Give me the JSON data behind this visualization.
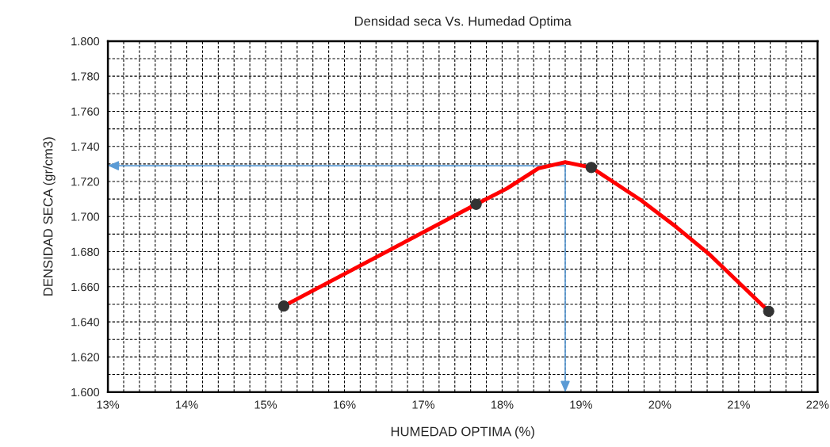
{
  "chart_data": {
    "type": "line",
    "title": "Densidad seca Vs. Humedad Optima",
    "xlabel": "HUMEDAD OPTIMA (%)",
    "ylabel": "DENSIDAD SECA (gr/cm3)",
    "series": [
      {
        "color": "#ff0000",
        "marker": "none",
        "x": [
          15.23,
          17.67,
          18.06,
          18.46,
          18.8,
          19.13,
          19.77,
          20.21,
          20.64,
          21.38
        ],
        "values": [
          1.649,
          1.707,
          1.716,
          1.7275,
          1.731,
          1.728,
          1.709,
          1.694,
          1.678,
          1.646
        ]
      },
      {
        "type": "scatter",
        "color": "#333333",
        "marker": "circle",
        "x": [
          15.23,
          17.67,
          19.13,
          21.38
        ],
        "values": [
          1.649,
          1.707,
          1.728,
          1.646
        ]
      }
    ],
    "xlim": [
      13,
      22
    ],
    "ylim": [
      1.6,
      1.8
    ],
    "xticks": [
      {
        "value": 13,
        "label": "13%"
      },
      {
        "value": 13.2,
        "label": null
      },
      {
        "value": 13.4,
        "label": null
      },
      {
        "value": 13.6,
        "label": null
      },
      {
        "value": 13.8,
        "label": null
      },
      {
        "value": 14,
        "label": "14%"
      },
      {
        "value": 14.2,
        "label": null
      },
      {
        "value": 14.4,
        "label": null
      },
      {
        "value": 14.6,
        "label": null
      },
      {
        "value": 14.8,
        "label": null
      },
      {
        "value": 15,
        "label": "15%"
      },
      {
        "value": 15.2,
        "label": null
      },
      {
        "value": 15.4,
        "label": null
      },
      {
        "value": 15.6,
        "label": null
      },
      {
        "value": 15.8,
        "label": null
      },
      {
        "value": 16,
        "label": "16%"
      },
      {
        "value": 16.2,
        "label": null
      },
      {
        "value": 16.4,
        "label": null
      },
      {
        "value": 16.6,
        "label": null
      },
      {
        "value": 16.8,
        "label": null
      },
      {
        "value": 17,
        "label": "17%"
      },
      {
        "value": 17.2,
        "label": null
      },
      {
        "value": 17.4,
        "label": null
      },
      {
        "value": 17.6,
        "label": null
      },
      {
        "value": 17.8,
        "label": null
      },
      {
        "value": 18,
        "label": "18%"
      },
      {
        "value": 18.2,
        "label": null
      },
      {
        "value": 18.4,
        "label": null
      },
      {
        "value": 18.6,
        "label": null
      },
      {
        "value": 18.8,
        "label": null
      },
      {
        "value": 19,
        "label": "19%"
      },
      {
        "value": 19.2,
        "label": null
      },
      {
        "value": 19.4,
        "label": null
      },
      {
        "value": 19.6,
        "label": null
      },
      {
        "value": 19.8,
        "label": null
      },
      {
        "value": 20,
        "label": "20%"
      },
      {
        "value": 20.2,
        "label": null
      },
      {
        "value": 20.4,
        "label": null
      },
      {
        "value": 20.6,
        "label": null
      },
      {
        "value": 20.8,
        "label": null
      },
      {
        "value": 21,
        "label": "21%"
      },
      {
        "value": 21.2,
        "label": null
      },
      {
        "value": 21.4,
        "label": null
      },
      {
        "value": 21.6,
        "label": null
      },
      {
        "value": 21.8,
        "label": null
      },
      {
        "value": 22,
        "label": "22%"
      }
    ],
    "yticks": [
      {
        "value": 1.6,
        "label": "1.600"
      },
      {
        "value": 1.61,
        "label": null
      },
      {
        "value": 1.62,
        "label": "1.620"
      },
      {
        "value": 1.63,
        "label": null
      },
      {
        "value": 1.64,
        "label": "1.640"
      },
      {
        "value": 1.65,
        "label": null
      },
      {
        "value": 1.66,
        "label": "1.660"
      },
      {
        "value": 1.67,
        "label": null
      },
      {
        "value": 1.68,
        "label": "1.680"
      },
      {
        "value": 1.69,
        "label": null
      },
      {
        "value": 1.7,
        "label": "1.700"
      },
      {
        "value": 1.71,
        "label": null
      },
      {
        "value": 1.72,
        "label": "1.720"
      },
      {
        "value": 1.73,
        "label": null
      },
      {
        "value": 1.74,
        "label": "1.740"
      },
      {
        "value": 1.75,
        "label": null
      },
      {
        "value": 1.76,
        "label": "1.760"
      },
      {
        "value": 1.77,
        "label": null
      },
      {
        "value": 1.78,
        "label": "1.780"
      },
      {
        "value": 1.79,
        "label": null
      },
      {
        "value": 1.8,
        "label": "1.800"
      }
    ],
    "grid": true,
    "ref_lines": [
      {
        "axis": "y",
        "value": 1.729,
        "color": "#5b9bd5"
      },
      {
        "axis": "x",
        "value": 18.8,
        "color": "#5b9bd5"
      }
    ]
  }
}
